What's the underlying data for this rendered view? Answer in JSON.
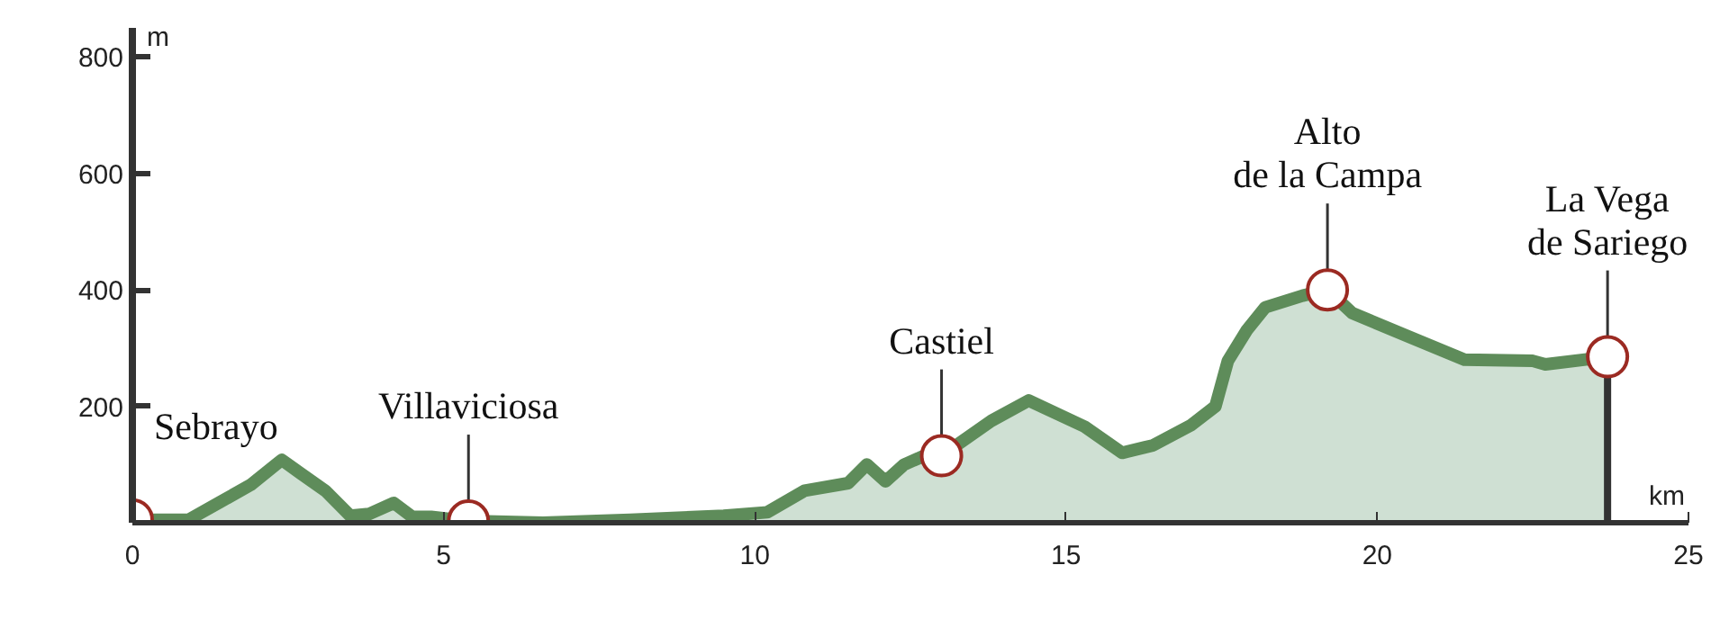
{
  "chart_data": {
    "type": "area",
    "xlabel": "km",
    "ylabel": "m",
    "x": [
      0,
      0.9,
      1.4,
      1.9,
      2.4,
      2.7,
      3.1,
      3.5,
      3.8,
      4.2,
      4.5,
      4.8,
      5.4,
      6.6,
      8.0,
      9.5,
      10.2,
      10.8,
      11.5,
      11.8,
      12.1,
      12.4,
      12.7,
      13.0,
      13.8,
      14.4,
      15.3,
      15.9,
      16.4,
      17.0,
      17.4,
      17.6,
      17.9,
      18.2,
      18.8,
      19.2,
      19.6,
      20.5,
      21.4,
      22.5,
      22.7,
      23.7
    ],
    "series": [
      {
        "color": "#5e8c5a",
        "values": [
          5,
          5,
          35,
          65,
          108,
          85,
          55,
          12,
          15,
          34,
          10,
          10,
          3,
          0,
          5,
          12,
          18,
          55,
          68,
          100,
          71,
          100,
          114,
          115,
          175,
          210,
          165,
          120,
          133,
          167,
          200,
          278,
          330,
          370,
          390,
          400,
          360,
          320,
          280,
          278,
          272,
          285
        ]
      }
    ],
    "ref_lines": [
      {
        "axis": "x",
        "value": 23.7,
        "color": "#333333"
      }
    ],
    "xlim": [
      0,
      25
    ],
    "ylim": [
      0,
      850
    ],
    "xticks": [
      0,
      5,
      10,
      15,
      20,
      25
    ],
    "yticks": [
      200,
      400,
      600,
      800
    ],
    "annotations": [
      {
        "text": "Sebrayo",
        "x": 0,
        "y": 5
      },
      {
        "text": "Villaviciosa",
        "x": 5.4,
        "y": 3
      },
      {
        "text": "Castiel",
        "x": 13.0,
        "y": 115
      },
      {
        "text": "Alto\nde la Campa",
        "x": 19.2,
        "y": 400
      },
      {
        "text": "La Vega\nde Sariego",
        "x": 23.7,
        "y": 285
      }
    ]
  }
}
